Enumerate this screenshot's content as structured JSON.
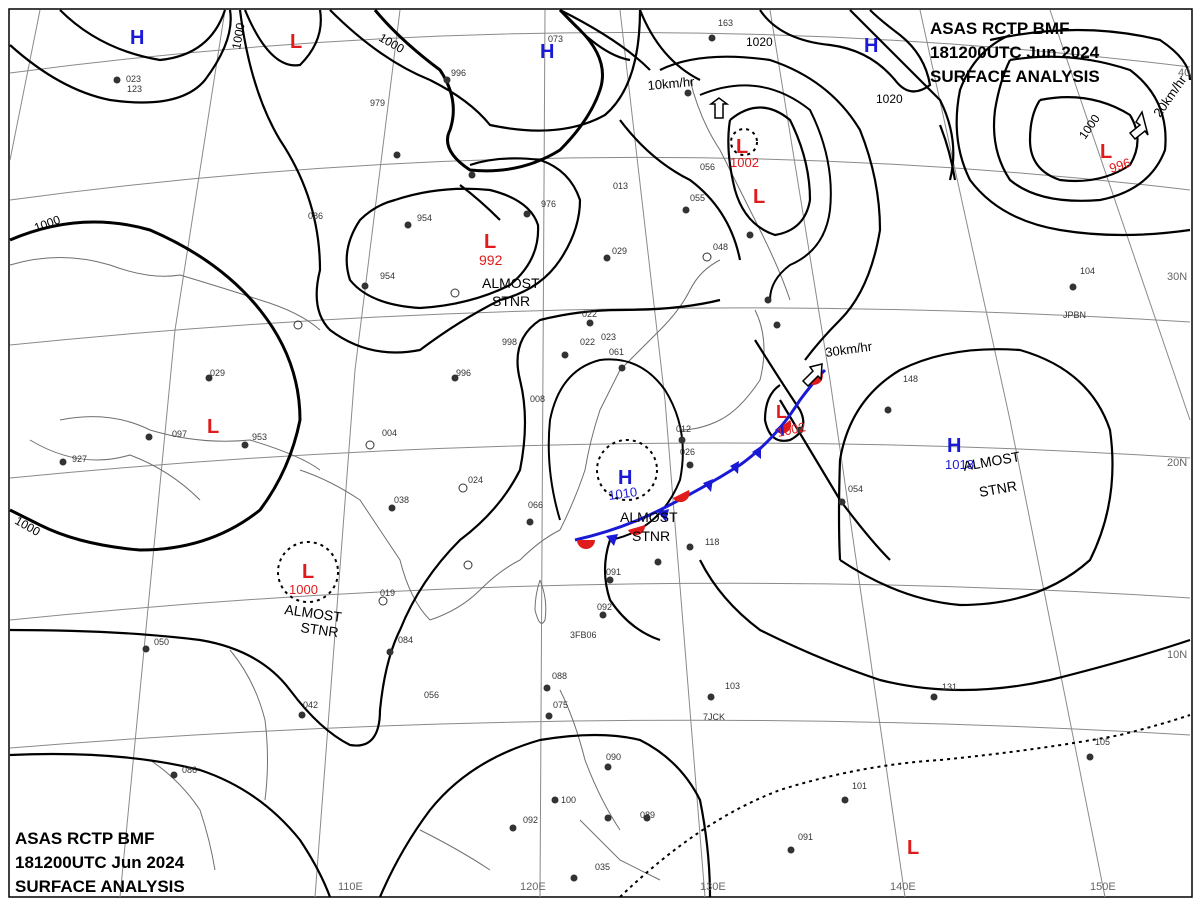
{
  "header_top": {
    "line1": "ASAS    RCTP    BMF",
    "line2": "181200UTC    Jun    2024",
    "line3": "SURFACE  ANALYSIS"
  },
  "header_bottom": {
    "line1": "ASAS      RCTP     BMF",
    "line2": "181200UTC    Jun    2024",
    "line3": "SURFACE  ANALYSIS"
  },
  "pressure_centers": [
    {
      "type": "H",
      "color": "#1a1ad6",
      "value": ""
    },
    {
      "type": "L",
      "color": "#e01b1b",
      "value": ""
    },
    {
      "type": "H",
      "color": "#1a1ad6",
      "value": ""
    },
    {
      "type": "H",
      "color": "#1a1ad6",
      "value": ""
    },
    {
      "type": "L",
      "color": "#e01b1b",
      "value": "996"
    },
    {
      "type": "L",
      "color": "#e01b1b",
      "value": "1002"
    },
    {
      "type": "L",
      "color": "#e01b1b",
      "value": ""
    },
    {
      "type": "L",
      "color": "#e01b1b",
      "value": "992"
    },
    {
      "type": "L",
      "color": "#e01b1b",
      "value": ""
    },
    {
      "type": "H",
      "color": "#1a1ad6",
      "value": "1010"
    },
    {
      "type": "L",
      "color": "#e01b1b",
      "value": "1002"
    },
    {
      "type": "H",
      "color": "#1a1ad6",
      "value": "1018"
    },
    {
      "type": "L",
      "color": "#e01b1b",
      "value": "1000"
    },
    {
      "type": "L",
      "color": "#e01b1b",
      "value": ""
    }
  ],
  "text_labels": [
    {
      "text": "ALMOST",
      "kind": "note"
    },
    {
      "text": "STNR",
      "kind": "note"
    },
    {
      "text": "ALMOST",
      "kind": "note"
    },
    {
      "text": "STNR",
      "kind": "note"
    },
    {
      "text": "ALMOST",
      "kind": "note"
    },
    {
      "text": "STNR",
      "kind": "note"
    },
    {
      "text": "ALMOST",
      "kind": "note"
    },
    {
      "text": "STNR",
      "kind": "note"
    },
    {
      "text": "10km/hr",
      "kind": "motion"
    },
    {
      "text": "20km/hr",
      "kind": "motion"
    },
    {
      "text": "30km/hr",
      "kind": "motion"
    },
    {
      "text": "1000",
      "kind": "isobar"
    },
    {
      "text": "1000",
      "kind": "isobar"
    },
    {
      "text": "1000",
      "kind": "isobar"
    },
    {
      "text": "1000",
      "kind": "isobar"
    },
    {
      "text": "1000",
      "kind": "isobar"
    },
    {
      "text": "1020",
      "kind": "isobar"
    },
    {
      "text": "1020",
      "kind": "isobar"
    },
    {
      "text": "110E",
      "kind": "grid"
    },
    {
      "text": "120E",
      "kind": "grid"
    },
    {
      "text": "130E",
      "kind": "grid"
    },
    {
      "text": "140E",
      "kind": "grid"
    },
    {
      "text": "150E",
      "kind": "grid"
    },
    {
      "text": "30N",
      "kind": "grid"
    },
    {
      "text": "20N",
      "kind": "grid"
    },
    {
      "text": "10N",
      "kind": "grid"
    },
    {
      "text": "40",
      "kind": "grid"
    }
  ],
  "station_values": [
    "023",
    "123",
    "979",
    "996",
    "073",
    "163",
    "086",
    "954",
    "954",
    "976",
    "013",
    "056",
    "055",
    "048",
    "029",
    "022",
    "061",
    "998",
    "996",
    "004",
    "024",
    "038",
    "029",
    "019",
    "008",
    "092",
    "042",
    "056",
    "084",
    "050",
    "086",
    "088",
    "075",
    "100",
    "092",
    "090",
    "089",
    "103",
    "131",
    "104",
    "105",
    "091",
    "101",
    "035",
    "953",
    "927",
    "097",
    "022",
    "023",
    "012",
    "026",
    "066",
    "118",
    "148",
    "054",
    "091",
    "3FB06",
    "7JCK",
    "JPBN"
  ],
  "colors": {
    "high": "#1a1ad6",
    "low": "#e01b1b",
    "warm_front": "#e01b1b",
    "cold_front": "#1a1ad6",
    "isobar": "#000000",
    "grid": "#8a8a8a",
    "coast": "#6f6f6f"
  }
}
